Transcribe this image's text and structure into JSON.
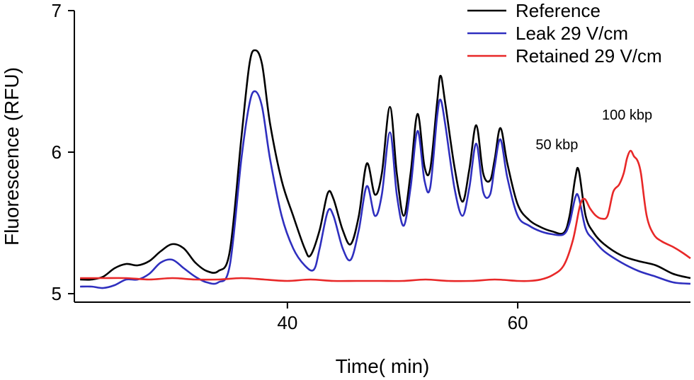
{
  "chart_data": {
    "type": "line",
    "title": "",
    "xlabel": "Time( min)",
    "ylabel": "Fluorescence (RFU)",
    "xlim": [
      21.5,
      75
    ],
    "ylim": [
      4.94,
      7
    ],
    "x_ticks": [
      40,
      60
    ],
    "y_ticks": [
      5,
      6,
      7
    ],
    "grid": false,
    "legend": "top-right",
    "annotations": [
      {
        "text": "50 kbp",
        "x": 63.4,
        "y": 6.02
      },
      {
        "text": "100 kbp",
        "x": 69.5,
        "y": 6.23
      }
    ],
    "series": [
      {
        "name": "Reference",
        "color": "#000000",
        "points": [
          [
            22,
            5.1
          ],
          [
            23,
            5.1
          ],
          [
            24,
            5.12
          ],
          [
            25,
            5.18
          ],
          [
            26,
            5.21
          ],
          [
            27,
            5.2
          ],
          [
            28,
            5.23
          ],
          [
            29,
            5.3
          ],
          [
            30,
            5.35
          ],
          [
            31,
            5.32
          ],
          [
            32,
            5.22
          ],
          [
            33,
            5.16
          ],
          [
            34,
            5.16
          ],
          [
            35,
            5.3
          ],
          [
            36,
            6.1
          ],
          [
            36.7,
            6.62
          ],
          [
            37.2,
            6.72
          ],
          [
            37.8,
            6.62
          ],
          [
            38.5,
            6.2
          ],
          [
            39.5,
            5.8
          ],
          [
            40.5,
            5.55
          ],
          [
            41.5,
            5.32
          ],
          [
            42,
            5.27
          ],
          [
            42.8,
            5.45
          ],
          [
            43.5,
            5.71
          ],
          [
            44,
            5.67
          ],
          [
            44.8,
            5.45
          ],
          [
            45.5,
            5.35
          ],
          [
            46.2,
            5.55
          ],
          [
            46.9,
            5.92
          ],
          [
            47.6,
            5.7
          ],
          [
            48.2,
            5.85
          ],
          [
            48.9,
            6.32
          ],
          [
            49.5,
            5.85
          ],
          [
            50.1,
            5.55
          ],
          [
            50.7,
            5.85
          ],
          [
            51.3,
            6.27
          ],
          [
            51.9,
            5.9
          ],
          [
            52.4,
            5.88
          ],
          [
            53.0,
            6.35
          ],
          [
            53.3,
            6.54
          ],
          [
            53.7,
            6.35
          ],
          [
            54.5,
            5.9
          ],
          [
            55.2,
            5.65
          ],
          [
            55.8,
            5.88
          ],
          [
            56.4,
            6.19
          ],
          [
            57.0,
            5.85
          ],
          [
            57.6,
            5.8
          ],
          [
            58.0,
            5.95
          ],
          [
            58.5,
            6.17
          ],
          [
            59.1,
            5.92
          ],
          [
            60,
            5.63
          ],
          [
            61,
            5.52
          ],
          [
            62,
            5.47
          ],
          [
            63,
            5.44
          ],
          [
            64,
            5.43
          ],
          [
            64.5,
            5.55
          ],
          [
            65.0,
            5.82
          ],
          [
            65.3,
            5.87
          ],
          [
            65.9,
            5.55
          ],
          [
            66.6,
            5.43
          ],
          [
            67.5,
            5.35
          ],
          [
            69,
            5.27
          ],
          [
            70.5,
            5.23
          ],
          [
            72,
            5.2
          ],
          [
            73.5,
            5.14
          ],
          [
            75,
            5.11
          ]
        ]
      },
      {
        "name": "Leak 29 V/cm",
        "color": "#2f2fbf",
        "points": [
          [
            22,
            5.05
          ],
          [
            23,
            5.05
          ],
          [
            24,
            5.04
          ],
          [
            25,
            5.06
          ],
          [
            26,
            5.1
          ],
          [
            27,
            5.1
          ],
          [
            28,
            5.14
          ],
          [
            29,
            5.22
          ],
          [
            30,
            5.24
          ],
          [
            31,
            5.18
          ],
          [
            32,
            5.12
          ],
          [
            33,
            5.08
          ],
          [
            34,
            5.08
          ],
          [
            35,
            5.2
          ],
          [
            36,
            5.95
          ],
          [
            36.7,
            6.34
          ],
          [
            37.2,
            6.43
          ],
          [
            37.8,
            6.32
          ],
          [
            38.5,
            5.95
          ],
          [
            39.5,
            5.55
          ],
          [
            40.5,
            5.32
          ],
          [
            41.5,
            5.2
          ],
          [
            42.3,
            5.17
          ],
          [
            42.8,
            5.32
          ],
          [
            43.5,
            5.58
          ],
          [
            44,
            5.55
          ],
          [
            44.8,
            5.32
          ],
          [
            45.5,
            5.24
          ],
          [
            46.2,
            5.45
          ],
          [
            46.9,
            5.76
          ],
          [
            47.6,
            5.55
          ],
          [
            48.2,
            5.7
          ],
          [
            48.9,
            6.14
          ],
          [
            49.5,
            5.7
          ],
          [
            50.1,
            5.48
          ],
          [
            50.7,
            5.75
          ],
          [
            51.3,
            6.15
          ],
          [
            51.9,
            5.8
          ],
          [
            52.4,
            5.75
          ],
          [
            53.0,
            6.25
          ],
          [
            53.3,
            6.37
          ],
          [
            53.7,
            6.2
          ],
          [
            54.5,
            5.75
          ],
          [
            55.2,
            5.55
          ],
          [
            55.8,
            5.75
          ],
          [
            56.4,
            6.06
          ],
          [
            57.0,
            5.72
          ],
          [
            57.6,
            5.7
          ],
          [
            58.0,
            5.9
          ],
          [
            58.5,
            6.09
          ],
          [
            59.1,
            5.82
          ],
          [
            60,
            5.55
          ],
          [
            61,
            5.48
          ],
          [
            62,
            5.44
          ],
          [
            63,
            5.42
          ],
          [
            64,
            5.42
          ],
          [
            64.5,
            5.5
          ],
          [
            65.0,
            5.68
          ],
          [
            65.3,
            5.68
          ],
          [
            65.9,
            5.46
          ],
          [
            66.6,
            5.38
          ],
          [
            67.5,
            5.3
          ],
          [
            69,
            5.22
          ],
          [
            70.5,
            5.16
          ],
          [
            72,
            5.12
          ],
          [
            73.5,
            5.08
          ],
          [
            75,
            5.07
          ]
        ]
      },
      {
        "name": "Retained 29 V/cm",
        "color": "#e82828",
        "points": [
          [
            22,
            5.11
          ],
          [
            24,
            5.11
          ],
          [
            26,
            5.11
          ],
          [
            28,
            5.1
          ],
          [
            30,
            5.11
          ],
          [
            32,
            5.1
          ],
          [
            34,
            5.1
          ],
          [
            36,
            5.11
          ],
          [
            38,
            5.1
          ],
          [
            40,
            5.09
          ],
          [
            42,
            5.1
          ],
          [
            44,
            5.09
          ],
          [
            46,
            5.09
          ],
          [
            48,
            5.09
          ],
          [
            50,
            5.09
          ],
          [
            52,
            5.1
          ],
          [
            54,
            5.09
          ],
          [
            56,
            5.09
          ],
          [
            58,
            5.1
          ],
          [
            60,
            5.09
          ],
          [
            61,
            5.09
          ],
          [
            62,
            5.1
          ],
          [
            63,
            5.13
          ],
          [
            64,
            5.2
          ],
          [
            64.8,
            5.38
          ],
          [
            65.4,
            5.62
          ],
          [
            65.8,
            5.67
          ],
          [
            66.3,
            5.6
          ],
          [
            66.8,
            5.55
          ],
          [
            67.3,
            5.53
          ],
          [
            67.8,
            5.55
          ],
          [
            68.3,
            5.72
          ],
          [
            68.8,
            5.77
          ],
          [
            69.2,
            5.85
          ],
          [
            69.5,
            5.96
          ],
          [
            69.8,
            6.01
          ],
          [
            70.1,
            5.97
          ],
          [
            70.4,
            5.94
          ],
          [
            70.7,
            5.85
          ],
          [
            71.2,
            5.55
          ],
          [
            71.8,
            5.42
          ],
          [
            72.5,
            5.37
          ],
          [
            73.5,
            5.33
          ],
          [
            74.3,
            5.29
          ],
          [
            75,
            5.25
          ]
        ]
      }
    ]
  }
}
